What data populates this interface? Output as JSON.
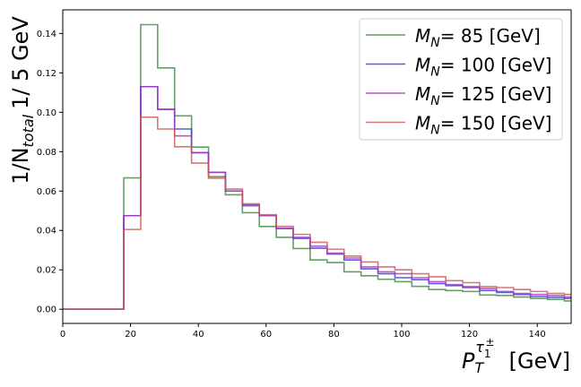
{
  "chart_data": {
    "type": "line",
    "subtype": "step-histogram",
    "xlabel_main": "P",
    "xlabel_sub": "T",
    "xlabel_sup": "τ",
    "xlabel_sup_sub": "1",
    "xlabel_sup_sup": "±",
    "xlabel_unit": "[GeV]",
    "ylabel_prefix": "1/N",
    "ylabel_sub": "total",
    "ylabel_suffix": "1/ 5 GeV",
    "xlim": [
      0,
      150
    ],
    "ylim": [
      -0.0072,
      0.152
    ],
    "xticks": [
      0,
      20,
      40,
      60,
      80,
      100,
      120,
      140
    ],
    "xtick_labels": [
      "0",
      "20",
      "40",
      "60",
      "80",
      "100",
      "120",
      "140"
    ],
    "yticks": [
      0.0,
      0.02,
      0.04,
      0.06,
      0.08,
      0.1,
      0.12,
      0.14
    ],
    "ytick_labels": [
      "0.00",
      "0.02",
      "0.04",
      "0.06",
      "0.08",
      "0.10",
      "0.12",
      "0.14"
    ],
    "grid": false,
    "legend_position": "top-right",
    "bin_edges": [
      0,
      3,
      8,
      13,
      18,
      23,
      28,
      33,
      38,
      43,
      48,
      53,
      58,
      63,
      68,
      73,
      78,
      83,
      88,
      93,
      98,
      103,
      108,
      113,
      118,
      123,
      128,
      133,
      138,
      143,
      148,
      150
    ],
    "series": [
      {
        "name_prefix": "M",
        "name_sub": "N",
        "name_value": "=  85",
        "name_unit": "[GeV]",
        "color": "#3a8a3a",
        "values": [
          0,
          0,
          0,
          0,
          0.0667,
          0.1445,
          0.1225,
          0.0982,
          0.0823,
          0.0673,
          0.0581,
          0.049,
          0.042,
          0.0365,
          0.0308,
          0.025,
          0.0237,
          0.019,
          0.017,
          0.0152,
          0.014,
          0.0116,
          0.01,
          0.0095,
          0.009,
          0.0072,
          0.007,
          0.0062,
          0.0055,
          0.005,
          0.0042
        ]
      },
      {
        "name_prefix": "M",
        "name_sub": "N",
        "name_value": "= 100",
        "name_unit": "[GeV]",
        "color": "#3333dd",
        "values": [
          0,
          0,
          0,
          0,
          0.0475,
          0.113,
          0.1015,
          0.0915,
          0.0795,
          0.0695,
          0.06,
          0.053,
          0.0475,
          0.041,
          0.036,
          0.031,
          0.028,
          0.025,
          0.0205,
          0.018,
          0.016,
          0.015,
          0.013,
          0.012,
          0.011,
          0.0095,
          0.0085,
          0.0075,
          0.0065,
          0.006,
          0.0055
        ]
      },
      {
        "name_prefix": "M",
        "name_sub": "N",
        "name_value": "= 125",
        "name_unit": "[GeV]",
        "color": "#aa33bb",
        "values": [
          0,
          0,
          0,
          0,
          0.0475,
          0.113,
          0.1015,
          0.088,
          0.0795,
          0.0695,
          0.06,
          0.0525,
          0.0475,
          0.041,
          0.0365,
          0.032,
          0.0285,
          0.026,
          0.0215,
          0.019,
          0.018,
          0.016,
          0.014,
          0.0125,
          0.0115,
          0.0105,
          0.009,
          0.008,
          0.0075,
          0.007,
          0.0062
        ]
      },
      {
        "name_prefix": "M",
        "name_sub": "N",
        "name_value": "= 150",
        "name_unit": "[GeV]",
        "color": "#cc5555",
        "values": [
          0,
          0,
          0,
          0,
          0.0405,
          0.0975,
          0.0915,
          0.0825,
          0.0742,
          0.0665,
          0.061,
          0.0535,
          0.048,
          0.042,
          0.038,
          0.034,
          0.0305,
          0.027,
          0.024,
          0.0215,
          0.02,
          0.018,
          0.0165,
          0.0145,
          0.0135,
          0.0115,
          0.011,
          0.01,
          0.009,
          0.008,
          0.0075
        ]
      }
    ]
  }
}
